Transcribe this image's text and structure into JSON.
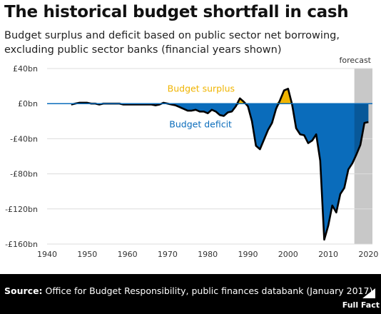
{
  "header": {
    "title": "The historical budget shortfall in cash",
    "subtitle": "Budget surplus and deficit based on public sector net borrowing, excluding public sector banks (financial years shown)"
  },
  "footer": {
    "source_label": "Source:",
    "source_text": "Office for Budget Responsibility, public finances databank (January 2017)",
    "logo_text": "Full Fact"
  },
  "colors": {
    "surplus": "#f0b400",
    "deficit": "#0a6cbb",
    "forecast_band": "#c8c8c8",
    "line": "#000000"
  },
  "chart_data": {
    "type": "area",
    "title": "The historical budget shortfall in cash",
    "xlabel": "",
    "ylabel": "",
    "xlim": [
      1940,
      2021
    ],
    "ylim": [
      -160,
      40
    ],
    "x_ticks": [
      1940,
      1950,
      1960,
      1970,
      1980,
      1990,
      2000,
      2010,
      2020
    ],
    "y_ticks": [
      40,
      0,
      -40,
      -80,
      -120,
      -160
    ],
    "y_tick_labels": [
      "£40bn",
      "£0bn",
      "-£40bn",
      "-£80bn",
      "-£120bn",
      "-£160bn"
    ],
    "grid": "horizontal",
    "forecast": {
      "label": "forecast",
      "from": 2016.5,
      "to": 2021
    },
    "annotations": {
      "surplus_label": "Budget surplus",
      "deficit_label": "Budget deficit"
    },
    "series": [
      {
        "name": "Budget surplus/deficit",
        "unit": "£bn",
        "points": [
          [
            1946,
            -1
          ],
          [
            1947,
            0
          ],
          [
            1948,
            1
          ],
          [
            1949,
            1
          ],
          [
            1950,
            1
          ],
          [
            1951,
            0
          ],
          [
            1952,
            0
          ],
          [
            1953,
            -1
          ],
          [
            1954,
            0
          ],
          [
            1955,
            0
          ],
          [
            1956,
            0
          ],
          [
            1957,
            0
          ],
          [
            1958,
            0
          ],
          [
            1959,
            -1
          ],
          [
            1960,
            -1
          ],
          [
            1961,
            -1
          ],
          [
            1962,
            -1
          ],
          [
            1963,
            -1
          ],
          [
            1964,
            -1
          ],
          [
            1965,
            -1
          ],
          [
            1966,
            -1
          ],
          [
            1967,
            -2
          ],
          [
            1968,
            -1
          ],
          [
            1969,
            1
          ],
          [
            1970,
            0
          ],
          [
            1971,
            -1
          ],
          [
            1972,
            -2
          ],
          [
            1973,
            -4
          ],
          [
            1974,
            -6
          ],
          [
            1975,
            -8
          ],
          [
            1976,
            -8
          ],
          [
            1977,
            -7
          ],
          [
            1978,
            -9
          ],
          [
            1979,
            -9
          ],
          [
            1980,
            -11
          ],
          [
            1981,
            -7
          ],
          [
            1982,
            -9
          ],
          [
            1983,
            -13
          ],
          [
            1984,
            -14
          ],
          [
            1985,
            -10
          ],
          [
            1986,
            -9
          ],
          [
            1987,
            -3
          ],
          [
            1988,
            6
          ],
          [
            1989,
            2
          ],
          [
            1990,
            -3
          ],
          [
            1991,
            -20
          ],
          [
            1992,
            -48
          ],
          [
            1993,
            -52
          ],
          [
            1994,
            -41
          ],
          [
            1995,
            -30
          ],
          [
            1996,
            -22
          ],
          [
            1997,
            -6
          ],
          [
            1998,
            4
          ],
          [
            1999,
            15
          ],
          [
            2000,
            17
          ],
          [
            2001,
            -1
          ],
          [
            2002,
            -28
          ],
          [
            2003,
            -35
          ],
          [
            2004,
            -36
          ],
          [
            2005,
            -45
          ],
          [
            2006,
            -42
          ],
          [
            2007,
            -35
          ],
          [
            2008,
            -65
          ],
          [
            2009,
            -155
          ],
          [
            2010,
            -139
          ],
          [
            2011,
            -116
          ],
          [
            2012,
            -124
          ],
          [
            2013,
            -103
          ],
          [
            2014,
            -96
          ],
          [
            2015,
            -75
          ],
          [
            2016,
            -68
          ],
          [
            2017,
            -58
          ],
          [
            2018,
            -47
          ],
          [
            2019,
            -22
          ],
          [
            2020,
            -21
          ]
        ]
      }
    ]
  }
}
